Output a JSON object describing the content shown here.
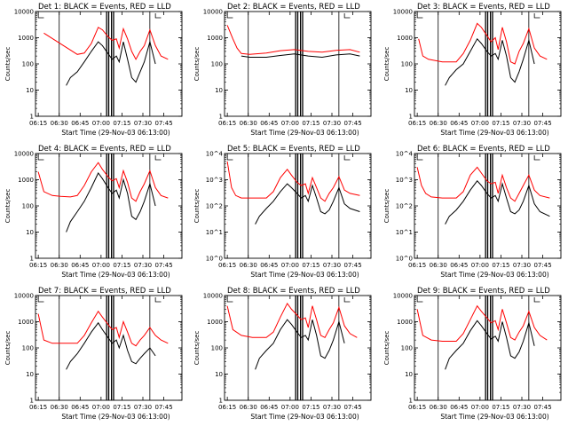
{
  "chart_data": [
    {
      "type": "line",
      "title": "Det 1: BLACK = Events, RED = LLD",
      "xlabel": "Start Time (29-Nov-03 06:13:00)",
      "ylabel": "Counts/sec",
      "x_ticks": [
        "06:15",
        "06:30",
        "06:45",
        "07:00",
        "07:15",
        "07:30",
        "07:45"
      ],
      "y_scale": "log",
      "ylim": [
        1,
        10000
      ],
      "y_ticks": [
        "1",
        "10",
        "100",
        "1000",
        "10000"
      ],
      "series": [
        {
          "color": "#ff0000",
          "x_min": [
            6,
            30,
            35,
            40,
            45,
            48,
            52,
            55,
            58,
            60,
            63,
            66,
            69,
            72,
            75,
            78,
            82,
            86,
            90,
            95
          ],
          "y": [
            1500,
            230,
            260,
            600,
            2500,
            2000,
            1100,
            800,
            900,
            400,
            2200,
            900,
            300,
            150,
            300,
            500,
            2000,
            500,
            200,
            150
          ]
        },
        {
          "color": "#000000",
          "x_min": [
            22,
            25,
            30,
            35,
            40,
            45,
            48,
            52,
            55,
            58,
            60,
            63,
            66,
            69,
            72,
            75,
            78,
            82,
            86
          ],
          "y": [
            15,
            30,
            50,
            120,
            300,
            700,
            500,
            250,
            150,
            200,
            120,
            700,
            150,
            30,
            20,
            50,
            120,
            700,
            100
          ]
        }
      ]
    },
    {
      "type": "line",
      "title": "Det 2: BLACK = Events, RED = LLD",
      "xlabel": "Start Time (29-Nov-03 06:13:00)",
      "ylabel": "Counts/sec",
      "x_ticks": [
        "06:15",
        "06:30",
        "06:45",
        "07:00",
        "07:15",
        "07:30",
        "07:45"
      ],
      "y_scale": "log",
      "ylim": [
        1,
        10000
      ],
      "y_ticks": [
        "1",
        "10",
        "100",
        "1000",
        "10000"
      ],
      "series": [
        {
          "color": "#ff0000",
          "x_min": [
            2,
            6,
            9,
            12,
            18,
            30,
            40,
            50,
            60,
            70,
            80,
            90,
            97
          ],
          "y": [
            3000,
            900,
            400,
            250,
            230,
            260,
            320,
            350,
            300,
            280,
            330,
            350,
            280
          ]
        },
        {
          "color": "#000000",
          "x_min": [
            12,
            18,
            30,
            40,
            50,
            60,
            70,
            80,
            90,
            97
          ],
          "y": [
            200,
            180,
            180,
            210,
            240,
            200,
            180,
            220,
            240,
            200
          ]
        }
      ]
    },
    {
      "type": "line",
      "title": "Det 3: BLACK = Events, RED = LLD",
      "xlabel": "Start Time (29-Nov-03 06:13:00)",
      "ylabel": "Counts/sec",
      "x_ticks": [
        "06:15",
        "06:30",
        "06:45",
        "07:00",
        "07:15",
        "07:30",
        "07:45"
      ],
      "y_scale": "log",
      "ylim": [
        1,
        10000
      ],
      "y_ticks": [
        "1",
        "10",
        "100",
        "1000",
        "10000"
      ],
      "series": [
        {
          "color": "#ff0000",
          "x_min": [
            3,
            6,
            10,
            20,
            30,
            35,
            40,
            45,
            48,
            52,
            55,
            58,
            60,
            63,
            66,
            69,
            72,
            75,
            78,
            82,
            86,
            90,
            95
          ],
          "y": [
            900,
            200,
            150,
            120,
            120,
            250,
            800,
            3500,
            2500,
            1200,
            700,
            1000,
            350,
            2500,
            700,
            120,
            100,
            300,
            600,
            2200,
            400,
            200,
            150
          ]
        },
        {
          "color": "#000000",
          "x_min": [
            22,
            25,
            30,
            35,
            40,
            45,
            48,
            52,
            55,
            58,
            60,
            63,
            66,
            69,
            72,
            75,
            78,
            82,
            86
          ],
          "y": [
            15,
            30,
            60,
            100,
            300,
            900,
            600,
            300,
            200,
            250,
            150,
            800,
            200,
            30,
            20,
            50,
            150,
            800,
            100
          ]
        }
      ]
    },
    {
      "type": "line",
      "title": "Det 4: BLACK = Events, RED = LLD",
      "xlabel": "Start Time (29-Nov-03 06:13:00)",
      "ylabel": "Counts/sec",
      "x_ticks": [
        "06:15",
        "06:30",
        "06:45",
        "07:00",
        "07:15",
        "07:30",
        "07:45"
      ],
      "y_scale": "log",
      "ylim": [
        1,
        10000
      ],
      "y_ticks": [
        "1",
        "10",
        "100",
        "1000",
        "10000"
      ],
      "series": [
        {
          "color": "#ff0000",
          "x_min": [
            2,
            6,
            12,
            18,
            25,
            30,
            35,
            40,
            45,
            48,
            52,
            55,
            58,
            60,
            63,
            66,
            69,
            72,
            75,
            78,
            82,
            86,
            90,
            95
          ],
          "y": [
            2000,
            350,
            250,
            230,
            220,
            250,
            600,
            2000,
            4500,
            2500,
            1300,
            900,
            1100,
            500,
            2200,
            800,
            200,
            150,
            350,
            700,
            2200,
            500,
            250,
            200
          ]
        },
        {
          "color": "#000000",
          "x_min": [
            22,
            25,
            30,
            35,
            40,
            45,
            48,
            52,
            55,
            58,
            60,
            63,
            66,
            69,
            72,
            75,
            78,
            82,
            86
          ],
          "y": [
            10,
            25,
            60,
            150,
            500,
            1800,
            1100,
            500,
            300,
            400,
            200,
            1000,
            300,
            40,
            30,
            60,
            150,
            700,
            100
          ]
        }
      ]
    },
    {
      "type": "line",
      "title": "Det 5: BLACK = Events, RED = LLD",
      "xlabel": "Start Time (29-Nov-03 06:13:00)",
      "ylabel": "Counts/sec",
      "x_ticks": [
        "06:15",
        "06:30",
        "06:45",
        "07:00",
        "07:15",
        "07:30",
        "07:45"
      ],
      "y_scale": "log",
      "ylim": [
        1,
        10000
      ],
      "y_ticks": [
        "10^0",
        "10^1",
        "10^2",
        "10^3",
        "10^4"
      ],
      "series": [
        {
          "color": "#ff0000",
          "x_min": [
            2,
            5,
            8,
            12,
            20,
            30,
            35,
            40,
            45,
            48,
            52,
            55,
            58,
            60,
            63,
            66,
            69,
            72,
            75,
            78,
            82,
            86,
            90,
            97
          ],
          "y": [
            5000,
            500,
            250,
            200,
            200,
            200,
            350,
            1200,
            2500,
            1500,
            800,
            600,
            700,
            300,
            1200,
            500,
            200,
            150,
            300,
            500,
            1300,
            400,
            300,
            250
          ]
        },
        {
          "color": "#000000",
          "x_min": [
            22,
            25,
            30,
            35,
            40,
            45,
            48,
            52,
            55,
            58,
            60,
            63,
            66,
            69,
            72,
            75,
            78,
            82,
            86,
            90,
            97
          ],
          "y": [
            20,
            40,
            80,
            150,
            350,
            700,
            500,
            300,
            200,
            250,
            150,
            600,
            200,
            60,
            50,
            70,
            150,
            500,
            120,
            80,
            60
          ]
        }
      ]
    },
    {
      "type": "line",
      "title": "Det 6: BLACK = Events, RED = LLD",
      "xlabel": "Start Time (29-Nov-03 06:13:00)",
      "ylabel": "Counts/sec",
      "x_ticks": [
        "06:15",
        "06:30",
        "06:45",
        "07:00",
        "07:15",
        "07:30",
        "07:45"
      ],
      "y_scale": "log",
      "ylim": [
        1,
        10000
      ],
      "y_ticks": [
        "10^0",
        "10^1",
        "10^2",
        "10^3",
        "10^4"
      ],
      "series": [
        {
          "color": "#ff0000",
          "x_min": [
            2,
            5,
            8,
            12,
            20,
            30,
            35,
            40,
            45,
            48,
            52,
            55,
            58,
            60,
            63,
            66,
            69,
            72,
            75,
            78,
            82,
            86,
            90,
            97
          ],
          "y": [
            3000,
            600,
            300,
            220,
            200,
            200,
            350,
            1500,
            3000,
            1800,
            900,
            700,
            800,
            300,
            1500,
            500,
            200,
            150,
            300,
            600,
            1500,
            400,
            250,
            200
          ]
        },
        {
          "color": "#000000",
          "x_min": [
            22,
            25,
            30,
            35,
            40,
            45,
            48,
            52,
            55,
            58,
            60,
            63,
            66,
            69,
            72,
            75,
            78,
            82,
            86,
            90,
            97
          ],
          "y": [
            20,
            40,
            70,
            150,
            400,
            900,
            600,
            300,
            200,
            250,
            150,
            700,
            200,
            60,
            50,
            70,
            150,
            600,
            120,
            60,
            40
          ]
        }
      ]
    },
    {
      "type": "line",
      "title": "Det 7: BLACK = Events, RED = LLD",
      "xlabel": "Start Time (29-Nov-03 06:13:00)",
      "ylabel": "Counts/sec",
      "x_ticks": [
        "06:15",
        "06:30",
        "06:45",
        "07:00",
        "07:15",
        "07:30",
        "07:45"
      ],
      "y_scale": "log",
      "ylim": [
        1,
        10000
      ],
      "y_ticks": [
        "1",
        "10",
        "100",
        "1000",
        "10000"
      ],
      "series": [
        {
          "color": "#ff0000",
          "x_min": [
            2,
            6,
            12,
            20,
            30,
            35,
            40,
            45,
            48,
            52,
            55,
            58,
            60,
            63,
            66,
            69,
            72,
            75,
            78,
            82,
            86,
            90,
            95
          ],
          "y": [
            2000,
            200,
            150,
            150,
            150,
            300,
            900,
            2500,
            1500,
            800,
            500,
            600,
            250,
            1000,
            400,
            150,
            120,
            200,
            300,
            600,
            300,
            200,
            150
          ]
        },
        {
          "color": "#000000",
          "x_min": [
            22,
            25,
            30,
            35,
            40,
            45,
            48,
            52,
            55,
            58,
            60,
            63,
            66,
            69,
            72,
            75,
            78,
            82,
            86
          ],
          "y": [
            15,
            30,
            60,
            150,
            400,
            900,
            500,
            250,
            150,
            200,
            100,
            300,
            80,
            30,
            25,
            40,
            60,
            100,
            50
          ]
        }
      ]
    },
    {
      "type": "line",
      "title": "Det 8: BLACK = Events, RED = LLD",
      "xlabel": "Start Time (29-Nov-03 06:13:00)",
      "ylabel": "Counts/sec",
      "x_ticks": [
        "06:15",
        "06:30",
        "06:45",
        "07:00",
        "07:15",
        "07:30",
        "07:45"
      ],
      "y_scale": "log",
      "ylim": [
        1,
        10000
      ],
      "y_ticks": [
        "1",
        "10",
        "100",
        "1000",
        "10000"
      ],
      "series": [
        {
          "color": "#ff0000",
          "x_min": [
            2,
            6,
            12,
            20,
            30,
            35,
            40,
            45,
            48,
            52,
            55,
            58,
            60,
            63,
            66,
            69,
            72,
            75,
            78,
            82,
            86,
            90,
            95
          ],
          "y": [
            4000,
            500,
            300,
            250,
            250,
            400,
            1500,
            5000,
            3000,
            1800,
            1200,
            1400,
            600,
            4000,
            1200,
            300,
            250,
            500,
            900,
            3500,
            700,
            350,
            250
          ]
        },
        {
          "color": "#000000",
          "x_min": [
            22,
            25,
            30,
            35,
            40,
            45,
            48,
            52,
            55,
            58,
            60,
            63,
            66,
            69,
            72,
            75,
            78,
            82,
            86
          ],
          "y": [
            15,
            40,
            80,
            150,
            500,
            1200,
            800,
            400,
            250,
            300,
            200,
            1200,
            300,
            50,
            40,
            80,
            200,
            1000,
            150
          ]
        }
      ]
    },
    {
      "type": "line",
      "title": "Det 9: BLACK = Events, RED = LLD",
      "xlabel": "Start Time (29-Nov-03 06:13:00)",
      "ylabel": "Counts/sec",
      "x_ticks": [
        "06:15",
        "06:30",
        "06:45",
        "07:00",
        "07:15",
        "07:30",
        "07:45"
      ],
      "y_scale": "log",
      "ylim": [
        1,
        10000
      ],
      "y_ticks": [
        "1",
        "10",
        "100",
        "1000",
        "10000"
      ],
      "series": [
        {
          "color": "#ff0000",
          "x_min": [
            2,
            6,
            12,
            20,
            30,
            35,
            40,
            45,
            48,
            52,
            55,
            58,
            60,
            63,
            66,
            69,
            72,
            75,
            78,
            82,
            86,
            90,
            95
          ],
          "y": [
            3000,
            300,
            200,
            180,
            180,
            350,
            1200,
            4000,
            2500,
            1400,
            900,
            1100,
            500,
            3000,
            900,
            250,
            200,
            400,
            700,
            2500,
            600,
            300,
            200
          ]
        },
        {
          "color": "#000000",
          "x_min": [
            22,
            25,
            30,
            35,
            40,
            45,
            48,
            52,
            55,
            58,
            60,
            63,
            66,
            69,
            72,
            75,
            78,
            82,
            86
          ],
          "y": [
            15,
            40,
            80,
            150,
            450,
            1100,
            700,
            350,
            220,
            280,
            180,
            1000,
            250,
            50,
            40,
            70,
            180,
            900,
            120
          ]
        }
      ]
    }
  ]
}
